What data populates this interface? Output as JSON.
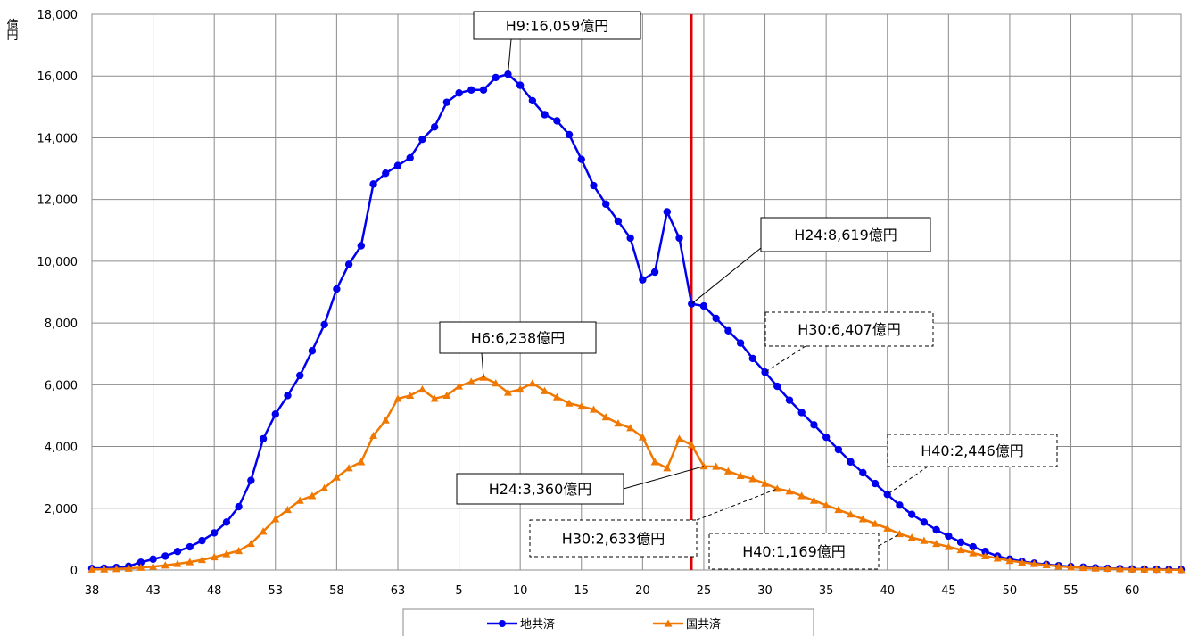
{
  "chart_data": {
    "type": "line",
    "title": "",
    "xlabel": "",
    "ylabel": "億円",
    "ylim": [
      0,
      18000
    ],
    "yticks": [
      0,
      2000,
      4000,
      6000,
      8000,
      10000,
      12000,
      14000,
      16000,
      18000
    ],
    "ytick_labels": [
      "0",
      "2,000",
      "4,000",
      "6,000",
      "8,000",
      "10,000",
      "12,000",
      "14,000",
      "16,000",
      "18,000"
    ],
    "x_tick_labels": [
      "38",
      "43",
      "48",
      "53",
      "58",
      "63",
      "5",
      "10",
      "15",
      "20",
      "25",
      "30",
      "35",
      "40",
      "45",
      "50",
      "55",
      "60"
    ],
    "x_tick_start": "S38",
    "x_tick_step_years": 5,
    "x_count": 90,
    "grid": true,
    "legend_position": "bottom",
    "vline_label": "H24",
    "series": [
      {
        "name": "地共済",
        "color": "#0000ee",
        "marker": "circle",
        "values": [
          50,
          60,
          80,
          120,
          250,
          350,
          450,
          600,
          750,
          950,
          1200,
          1550,
          2050,
          2900,
          4250,
          5050,
          5650,
          6300,
          7100,
          7950,
          9100,
          9900,
          10500,
          12500,
          12850,
          13100,
          13350,
          13950,
          14350,
          15150,
          15450,
          15550,
          15550,
          15950,
          16059,
          15700,
          15200,
          14750,
          14550,
          14100,
          13300,
          12450,
          11850,
          11300,
          10750,
          9400,
          9650,
          11600,
          10750,
          8619,
          8550,
          8150,
          7750,
          7350,
          6850,
          6407,
          5950,
          5500,
          5100,
          4700,
          4300,
          3900,
          3500,
          3150,
          2800,
          2446,
          2100,
          1800,
          1550,
          1300,
          1100,
          900,
          750,
          600,
          450,
          350,
          280,
          220,
          180,
          140,
          110,
          90,
          70,
          55,
          45,
          35,
          30,
          25,
          20,
          15
        ]
      },
      {
        "name": "国共済",
        "color": "#f07800",
        "marker": "triangle",
        "values": [
          20,
          25,
          35,
          50,
          80,
          110,
          150,
          200,
          260,
          330,
          420,
          520,
          620,
          850,
          1250,
          1650,
          1950,
          2250,
          2400,
          2650,
          3000,
          3300,
          3500,
          4350,
          4850,
          5550,
          5650,
          5850,
          5550,
          5650,
          5950,
          6100,
          6238,
          6050,
          5750,
          5850,
          6050,
          5800,
          5600,
          5400,
          5300,
          5200,
          4950,
          4750,
          4600,
          4300,
          3500,
          3300,
          4250,
          4050,
          3360,
          3350,
          3200,
          3050,
          2950,
          2800,
          2633,
          2550,
          2400,
          2250,
          2100,
          1950,
          1800,
          1650,
          1500,
          1350,
          1169,
          1050,
          950,
          850,
          750,
          650,
          550,
          450,
          380,
          300,
          250,
          200,
          160,
          120,
          90,
          70,
          55,
          45,
          35,
          25,
          20,
          15,
          10,
          8
        ]
      }
    ],
    "annotations": [
      {
        "text": "H9:16,059億円",
        "series": 0,
        "index": 34,
        "style": "solid"
      },
      {
        "text": "H24:8,619億円",
        "series": 0,
        "index": 49,
        "style": "solid"
      },
      {
        "text": "H30:6,407億円",
        "series": 0,
        "index": 55,
        "style": "dashed"
      },
      {
        "text": "H40:2,446億円",
        "series": 0,
        "index": 65,
        "style": "dashed"
      },
      {
        "text": "H6:6,238億円",
        "series": 1,
        "index": 32,
        "style": "solid"
      },
      {
        "text": "H24:3,360億円",
        "series": 1,
        "index": 50,
        "style": "solid"
      },
      {
        "text": "H30:2,633億円",
        "series": 1,
        "index": 56,
        "style": "dashed"
      },
      {
        "text": "H40:1,169億円",
        "series": 1,
        "index": 66,
        "style": "dashed"
      }
    ]
  }
}
